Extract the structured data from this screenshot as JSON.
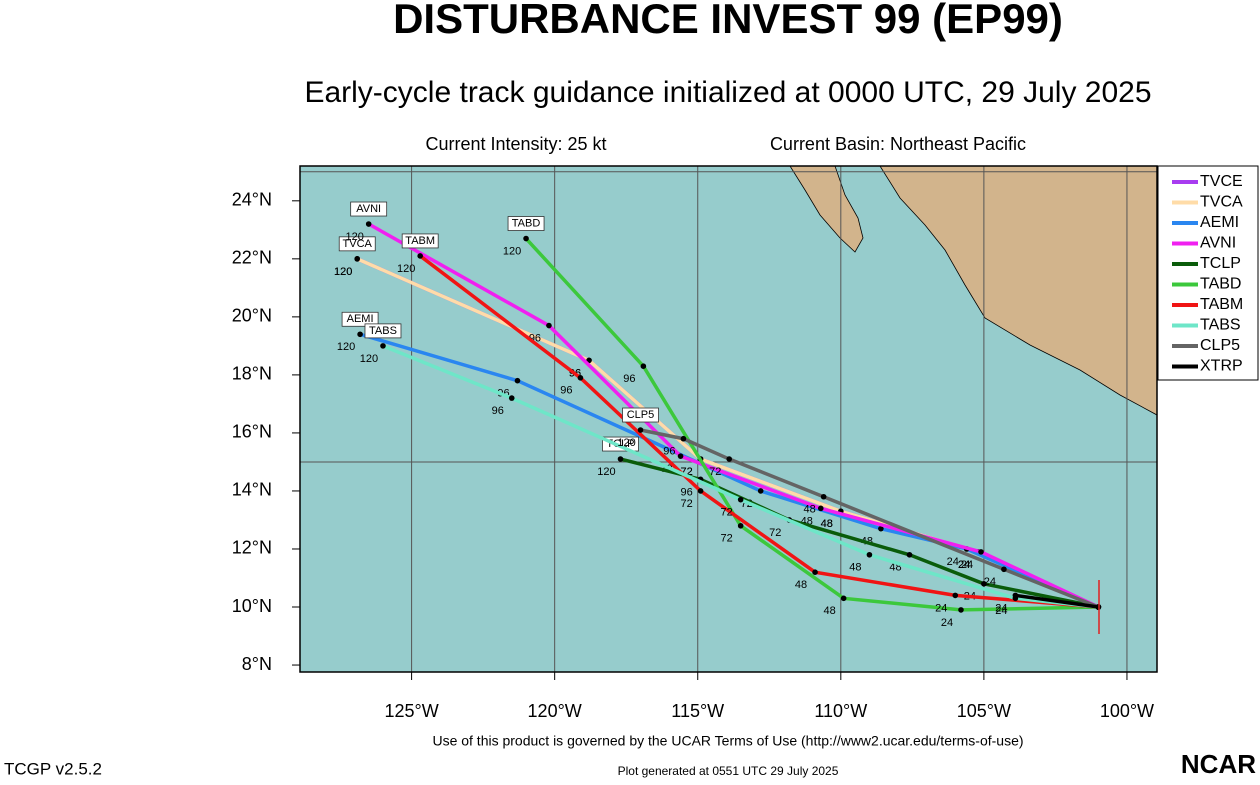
{
  "chart_data": {
    "type": "track-map",
    "title": "DISTURBANCE INVEST 99 (EP99)",
    "subtitle": "Early-cycle track guidance initialized at 0000 UTC, 29 July 2025",
    "current_intensity": "Current Intensity: 25 kt",
    "current_basin": "Current Basin: Northeast Pacific",
    "xlim": [
      -128.9,
      -98.95
    ],
    "ylim": [
      7.76,
      25.2
    ],
    "xticks": [
      {
        "value": -125,
        "label": "125°W"
      },
      {
        "value": -120,
        "label": "120°W"
      },
      {
        "value": -115,
        "label": "115°W"
      },
      {
        "value": -110,
        "label": "110°W"
      },
      {
        "value": -105,
        "label": "105°W"
      },
      {
        "value": -100,
        "label": "100°W"
      }
    ],
    "yticks": [
      {
        "value": 8,
        "label": "8°N"
      },
      {
        "value": 10,
        "label": "10°N"
      },
      {
        "value": 12,
        "label": "12°N"
      },
      {
        "value": 14,
        "label": "14°N"
      },
      {
        "value": 16,
        "label": "16°N"
      },
      {
        "value": 18,
        "label": "18°N"
      },
      {
        "value": 20,
        "label": "20°N"
      },
      {
        "value": 22,
        "label": "22°N"
      },
      {
        "value": 24,
        "label": "24°N"
      }
    ],
    "ygrid": [
      15,
      25
    ],
    "series": [
      {
        "name": "TVCE",
        "color": "#a83cf0",
        "labeled": false,
        "hours": [
          0,
          24,
          48,
          72,
          96,
          120
        ],
        "x": [
          -101.0,
          -105.2,
          -110.0,
          -114.9,
          -118.8,
          -126.9
        ],
        "y": [
          10.0,
          11.9,
          13.3,
          15.1,
          18.5,
          22.0
        ]
      },
      {
        "name": "TVCA",
        "color": "#ffdca8",
        "labeled": true,
        "hours": [
          0,
          24,
          48,
          72,
          96,
          120
        ],
        "x": [
          -101.0,
          -105.2,
          -110.0,
          -114.9,
          -118.8,
          -126.9
        ],
        "y": [
          10.0,
          11.9,
          13.3,
          15.1,
          18.5,
          22.0
        ]
      },
      {
        "name": "AEMI",
        "color": "#2a86f0",
        "labeled": true,
        "hours": [
          0,
          24,
          48,
          72,
          96,
          120
        ],
        "x": [
          -101.0,
          -105.6,
          -108.6,
          -112.8,
          -121.3,
          -126.8
        ],
        "y": [
          10.0,
          12.0,
          12.7,
          14.0,
          17.8,
          19.4
        ]
      },
      {
        "name": "AVNI",
        "color": "#f020f0",
        "labeled": true,
        "hours": [
          0,
          24,
          48,
          72,
          96,
          120
        ],
        "x": [
          -101.0,
          -105.1,
          -110.7,
          -115.6,
          -120.2,
          -126.5
        ],
        "y": [
          10.0,
          11.9,
          13.4,
          15.2,
          19.7,
          23.2
        ]
      },
      {
        "name": "TCLP",
        "color": "#0a5c0a",
        "labeled": true,
        "hours": [
          0,
          24,
          48,
          72,
          96,
          120
        ],
        "x": [
          -101.0,
          -105.0,
          -107.6,
          -111.8,
          -114.9,
          -117.7
        ],
        "y": [
          10.0,
          10.8,
          11.8,
          13.0,
          14.4,
          15.1
        ]
      },
      {
        "name": "TABD",
        "color": "#3cc83c",
        "labeled": true,
        "hours": [
          0,
          24,
          48,
          72,
          96,
          120
        ],
        "x": [
          -101.0,
          -105.8,
          -109.9,
          -113.5,
          -116.9,
          -121.0
        ],
        "y": [
          10.0,
          9.9,
          10.3,
          12.8,
          18.3,
          22.7
        ]
      },
      {
        "name": "TABM",
        "color": "#f01414",
        "labeled": true,
        "hours": [
          0,
          24,
          48,
          72,
          96,
          120
        ],
        "x": [
          -101.0,
          -106.0,
          -110.9,
          -114.9,
          -119.1,
          -124.7
        ],
        "y": [
          10.0,
          10.4,
          11.2,
          14.0,
          17.9,
          22.1
        ]
      },
      {
        "name": "TABS",
        "color": "#6ee6c8",
        "labeled": true,
        "hours": [
          0,
          24,
          48,
          72,
          96,
          120
        ],
        "x": [
          -101.0,
          -103.9,
          -109.0,
          -113.5,
          -121.5,
          -126.0
        ],
        "y": [
          10.0,
          10.3,
          11.8,
          13.7,
          17.2,
          19.0
        ]
      },
      {
        "name": "CLP5",
        "color": "#646464",
        "labeled": true,
        "hours": [
          0,
          24,
          48,
          72,
          96,
          120
        ],
        "x": [
          -101.0,
          -104.3,
          -110.6,
          -113.9,
          -115.5,
          -117.0
        ],
        "y": [
          10.0,
          11.3,
          13.8,
          15.1,
          15.8,
          16.1
        ]
      },
      {
        "name": "XTRP",
        "color": "#000000",
        "labeled": false,
        "hours": [
          0,
          24
        ],
        "x": [
          -101.0,
          -103.9
        ],
        "y": [
          10.0,
          10.4
        ]
      }
    ]
  },
  "footer": {
    "terms": "Use of this product is governed by the UCAR Terms of Use (http://www2.ucar.edu/terms-of-use)",
    "version": "TCGP v2.5.2",
    "generated": "Plot generated at 0551 UTC  29 July 2025",
    "logo": "NCAR"
  }
}
